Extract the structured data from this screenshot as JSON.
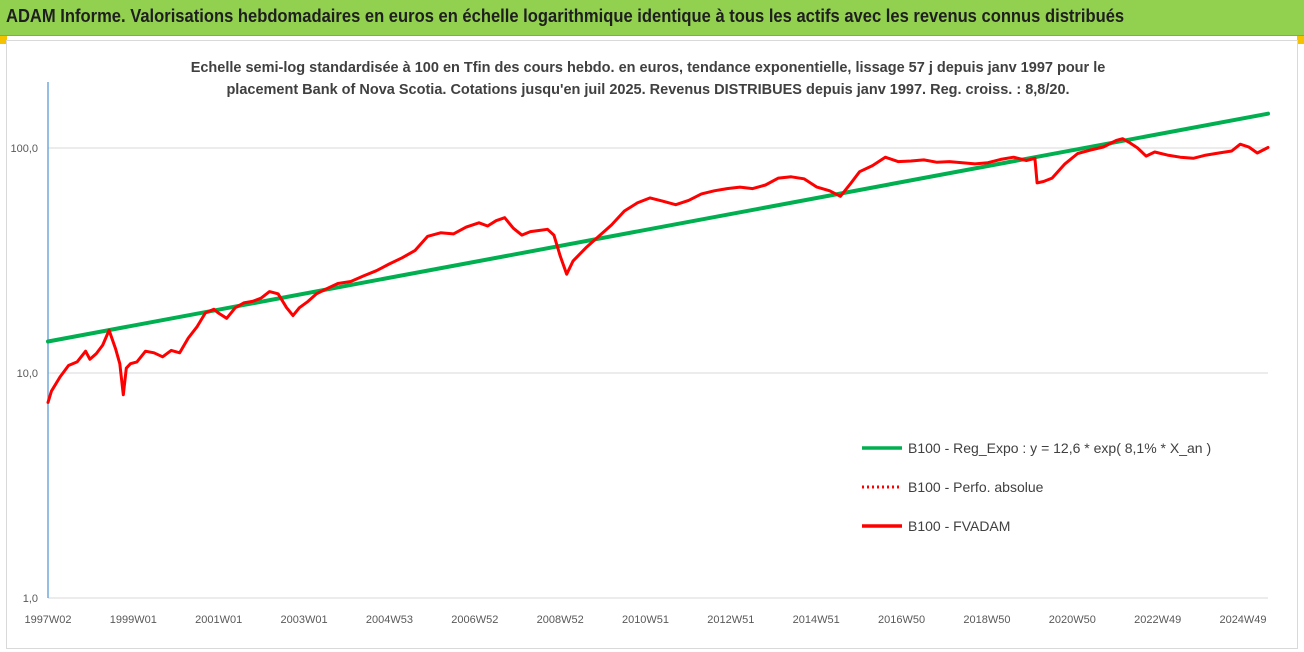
{
  "banner": {
    "title": "ADAM Informe. Valorisations hebdomadaires en euros en échelle logarithmique identique à tous les actifs avec les revenus connus distribués",
    "background": "#92d050",
    "accent": "#f5c200"
  },
  "chart_data": {
    "type": "line",
    "title_line1": "Echelle semi-log standardisée à 100 en Tfin des cours hebdo. en euros, tendance exponentielle, lissage 57 j depuis janv 1997 pour le",
    "title_line2": "placement Bank of Nova Scotia. Cotations jusqu'en juil 2025.  Revenus DISTRIBUES depuis janv 1997. Reg. croiss. : 8,8/20.",
    "y_scale": "log",
    "ylim": [
      1,
      200
    ],
    "y_ticks": [
      "1,0",
      "10,0",
      "100,0"
    ],
    "x_range": [
      1997.02,
      2025.55
    ],
    "x_ticks": [
      "1997W02",
      "1999W01",
      "2001W01",
      "2003W01",
      "2004W53",
      "2006W52",
      "2008W52",
      "2010W51",
      "2012W51",
      "2014W51",
      "2016W50",
      "2018W50",
      "2020W50",
      "2022W49",
      "2024W49"
    ],
    "grid": "horizontal",
    "legend_position": "bottom-right",
    "series": [
      {
        "name": "B100 - Reg_Expo : y = 12,6 * exp( 8,1% *  X_an )",
        "color": "#00b050",
        "style": "solid",
        "x": [
          1997.02,
          2025.55
        ],
        "y": [
          13.8,
          142
        ]
      },
      {
        "name": "B100 - Perfo. absolue",
        "color": "#ff0000",
        "style": "dotted",
        "x": [],
        "y": []
      },
      {
        "name": "B100 - FVADAM",
        "color": "#ff0000",
        "style": "solid",
        "x": [
          1997.02,
          1997.1,
          1997.3,
          1997.5,
          1997.7,
          1997.9,
          1998.0,
          1998.15,
          1998.3,
          1998.45,
          1998.6,
          1998.7,
          1998.78,
          1998.85,
          1998.95,
          1999.1,
          1999.3,
          1999.5,
          1999.7,
          1999.9,
          2000.1,
          2000.3,
          2000.5,
          2000.7,
          2000.9,
          2001.0,
          2001.2,
          2001.4,
          2001.6,
          2001.8,
          2002.0,
          2002.2,
          2002.4,
          2002.6,
          2002.75,
          2002.9,
          2003.1,
          2003.3,
          2003.5,
          2003.8,
          2004.1,
          2004.4,
          2004.7,
          2005.0,
          2005.3,
          2005.6,
          2005.9,
          2006.2,
          2006.5,
          2006.8,
          2007.1,
          2007.3,
          2007.5,
          2007.7,
          2007.9,
          2008.1,
          2008.3,
          2008.5,
          2008.7,
          2008.85,
          2009.0,
          2009.15,
          2009.3,
          2009.6,
          2009.9,
          2010.2,
          2010.5,
          2010.8,
          2011.1,
          2011.4,
          2011.7,
          2012.0,
          2012.3,
          2012.6,
          2012.9,
          2013.2,
          2013.5,
          2013.8,
          2014.1,
          2014.4,
          2014.7,
          2015.0,
          2015.3,
          2015.55,
          2015.8,
          2016.0,
          2016.3,
          2016.6,
          2016.9,
          2017.2,
          2017.5,
          2017.8,
          2018.1,
          2018.4,
          2018.7,
          2019.0,
          2019.3,
          2019.6,
          2019.9,
          2020.1,
          2020.15,
          2020.3,
          2020.5,
          2020.8,
          2021.1,
          2021.4,
          2021.7,
          2022.0,
          2022.15,
          2022.3,
          2022.5,
          2022.7,
          2022.9,
          2023.2,
          2023.5,
          2023.8,
          2024.1,
          2024.4,
          2024.7,
          2024.9,
          2025.1,
          2025.3,
          2025.55
        ],
        "y": [
          7.4,
          8.3,
          9.6,
          10.8,
          11.2,
          12.5,
          11.5,
          12.2,
          13.3,
          15.5,
          12.8,
          11.0,
          8.0,
          10.5,
          11.0,
          11.2,
          12.5,
          12.3,
          11.8,
          12.6,
          12.3,
          14.3,
          16.0,
          18.5,
          19.2,
          18.5,
          17.5,
          19.5,
          20.5,
          20.8,
          21.5,
          23.0,
          22.5,
          19.5,
          18.0,
          19.5,
          20.8,
          22.5,
          23.5,
          25.0,
          25.5,
          27.0,
          28.5,
          30.5,
          32.5,
          35.0,
          40.5,
          42.0,
          41.5,
          44.5,
          46.5,
          45.0,
          47.5,
          49.0,
          44.0,
          41.0,
          42.5,
          43.0,
          43.5,
          41.0,
          33.0,
          27.5,
          31.5,
          36.0,
          40.5,
          45.5,
          52.5,
          57.0,
          60.0,
          58.0,
          56.0,
          58.5,
          62.5,
          64.5,
          66.0,
          67.0,
          66.0,
          68.5,
          73.5,
          74.5,
          73.0,
          67.0,
          64.5,
          61.0,
          70.0,
          78.5,
          83.5,
          91.0,
          87.0,
          87.5,
          88.5,
          86.5,
          87.0,
          86.0,
          85.0,
          86.0,
          89.0,
          91.0,
          88.0,
          90.0,
          70.0,
          71.0,
          73.5,
          85.0,
          94.5,
          98.0,
          101.0,
          108.0,
          110.0,
          106.0,
          100.0,
          92.0,
          96.0,
          93.0,
          91.0,
          90.0,
          93.0,
          95.0,
          97.0,
          104.0,
          101.0,
          95.0,
          100.5
        ]
      }
    ]
  }
}
